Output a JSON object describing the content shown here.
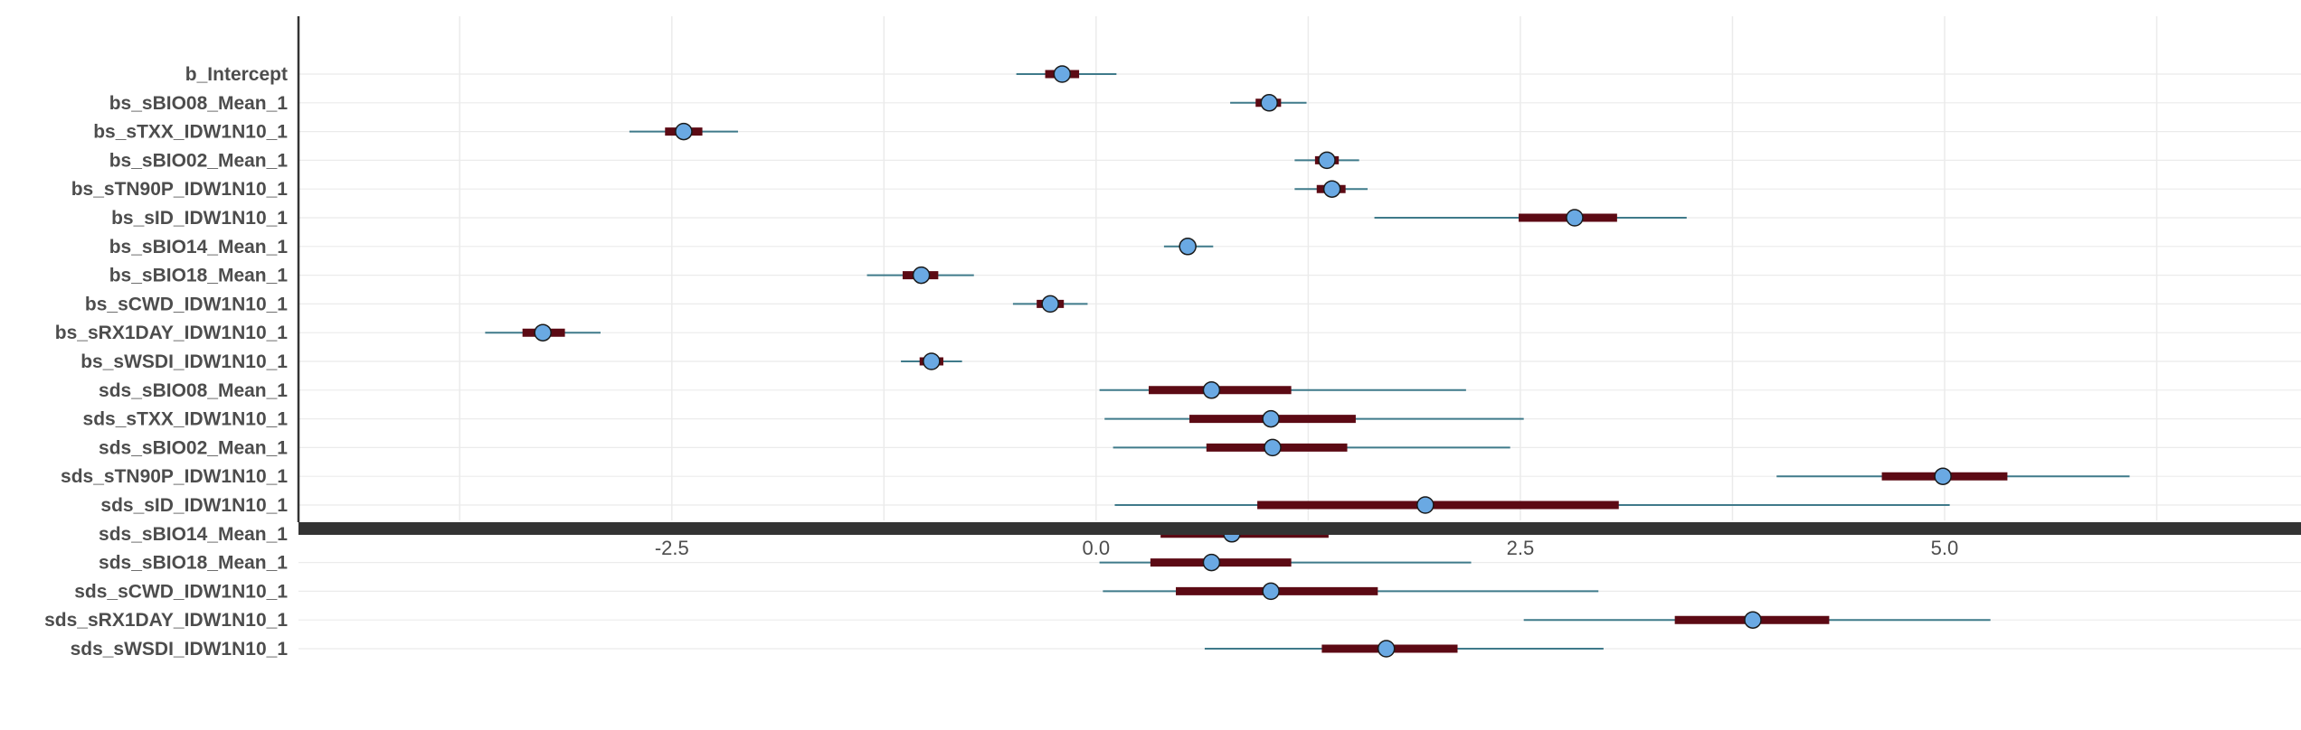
{
  "chart_data": {
    "type": "interval",
    "title": "",
    "xlabel": "",
    "ylabel": "",
    "xlim": [
      -4.7,
      7.1
    ],
    "xticks": [
      -2.5,
      0.0,
      2.5,
      5.0
    ],
    "xtick_labels": [
      "-2.5",
      "0.0",
      "2.5",
      "5.0"
    ],
    "grid": true,
    "legend": "none",
    "colors": {
      "outer_line": "#3f7a8a",
      "inner_bar": "#5c0a14",
      "point_fill": "#6aa9e3",
      "point_stroke": "#1a1a1a",
      "grid": "#ebebeb",
      "axis": "#333333"
    },
    "parameters": [
      {
        "name": "b_Intercept",
        "estimate": -0.2,
        "inner": [
          -0.3,
          -0.1
        ],
        "outer": [
          -0.47,
          0.12
        ]
      },
      {
        "name": "bs_sBIO08_Mean_1",
        "estimate": 1.02,
        "inner": [
          0.94,
          1.09
        ],
        "outer": [
          0.79,
          1.24
        ]
      },
      {
        "name": "bs_sTXX_IDW1N10_1",
        "estimate": -2.43,
        "inner": [
          -2.54,
          -2.32
        ],
        "outer": [
          -2.75,
          -2.11
        ]
      },
      {
        "name": "bs_sBIO02_Mean_1",
        "estimate": 1.36,
        "inner": [
          1.29,
          1.43
        ],
        "outer": [
          1.17,
          1.55
        ]
      },
      {
        "name": "bs_sTN90P_IDW1N10_1",
        "estimate": 1.39,
        "inner": [
          1.3,
          1.47
        ],
        "outer": [
          1.17,
          1.6
        ]
      },
      {
        "name": "bs_sID_IDW1N10_1",
        "estimate": 2.82,
        "inner": [
          2.49,
          3.07
        ],
        "outer": [
          1.64,
          3.48
        ]
      },
      {
        "name": "bs_sBIO14_Mean_1",
        "estimate": 0.54,
        "inner": [
          0.5,
          0.58
        ],
        "outer": [
          0.4,
          0.69
        ]
      },
      {
        "name": "bs_sBIO18_Mean_1",
        "estimate": -1.03,
        "inner": [
          -1.14,
          -0.93
        ],
        "outer": [
          -1.35,
          -0.72
        ]
      },
      {
        "name": "bs_sCWD_IDW1N10_1",
        "estimate": -0.27,
        "inner": [
          -0.35,
          -0.19
        ],
        "outer": [
          -0.49,
          -0.05
        ]
      },
      {
        "name": "bs_sRX1DAY_IDW1N10_1",
        "estimate": -3.26,
        "inner": [
          -3.38,
          -3.13
        ],
        "outer": [
          -3.6,
          -2.92
        ]
      },
      {
        "name": "bs_sWSDI_IDW1N10_1",
        "estimate": -0.97,
        "inner": [
          -1.04,
          -0.9
        ],
        "outer": [
          -1.15,
          -0.79
        ]
      },
      {
        "name": "sds_sBIO08_Mean_1",
        "estimate": 0.68,
        "inner": [
          0.31,
          1.15
        ],
        "outer": [
          0.02,
          2.18
        ]
      },
      {
        "name": "sds_sTXX_IDW1N10_1",
        "estimate": 1.03,
        "inner": [
          0.55,
          1.53
        ],
        "outer": [
          0.05,
          2.52
        ]
      },
      {
        "name": "sds_sBIO02_Mean_1",
        "estimate": 1.04,
        "inner": [
          0.65,
          1.48
        ],
        "outer": [
          0.1,
          2.44
        ]
      },
      {
        "name": "sds_sTN90P_IDW1N10_1",
        "estimate": 4.99,
        "inner": [
          4.63,
          5.37
        ],
        "outer": [
          4.01,
          6.09
        ]
      },
      {
        "name": "sds_sID_IDW1N10_1",
        "estimate": 1.94,
        "inner": [
          0.95,
          3.08
        ],
        "outer": [
          0.11,
          5.03
        ]
      },
      {
        "name": "sds_sBIO14_Mean_1",
        "estimate": 0.8,
        "inner": [
          0.38,
          1.37
        ],
        "outer": [
          0.03,
          2.52
        ]
      },
      {
        "name": "sds_sBIO18_Mean_1",
        "estimate": 0.68,
        "inner": [
          0.32,
          1.15
        ],
        "outer": [
          0.02,
          2.21
        ]
      },
      {
        "name": "sds_sCWD_IDW1N10_1",
        "estimate": 1.03,
        "inner": [
          0.47,
          1.66
        ],
        "outer": [
          0.04,
          2.96
        ]
      },
      {
        "name": "sds_sRX1DAY_IDW1N10_1",
        "estimate": 3.87,
        "inner": [
          3.41,
          4.32
        ],
        "outer": [
          2.52,
          5.27
        ]
      },
      {
        "name": "sds_sWSDI_IDW1N10_1",
        "estimate": 1.71,
        "inner": [
          1.33,
          2.13
        ],
        "outer": [
          0.64,
          2.99
        ]
      }
    ]
  }
}
